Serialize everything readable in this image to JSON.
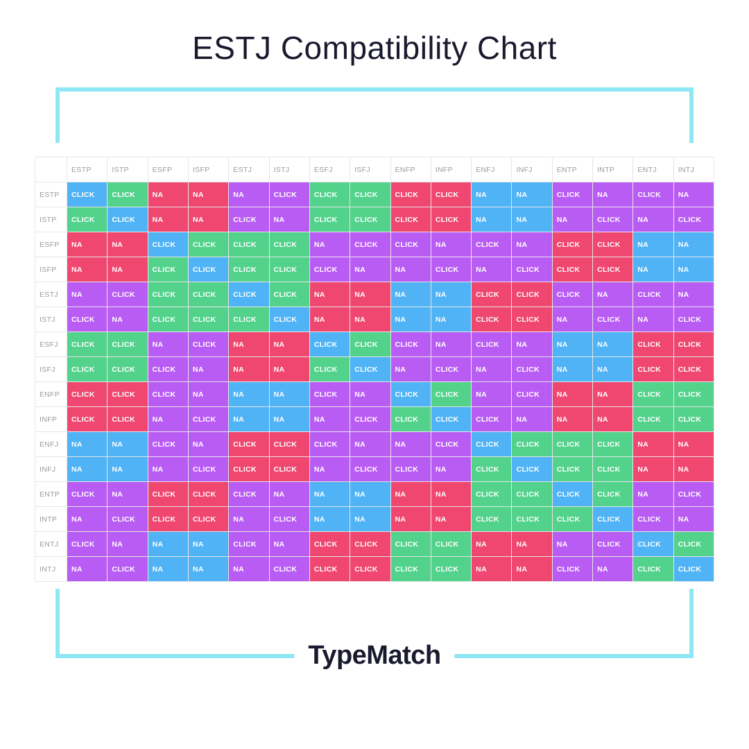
{
  "title": "ESTJ Compatibility Chart",
  "brand": "TypeMatch",
  "frame_color": "#8ee7f4",
  "colors": {
    "blue": "#4fb3f6",
    "green": "#53d28c",
    "red": "#ef476f",
    "purple": "#b95cf4"
  },
  "header_text_color": "#9a9a9a",
  "cell_text_color": "#ffffff",
  "border_color": "#e6e6e6",
  "cell_font_size": 10.5,
  "cell_font_weight": 700,
  "types": [
    "ESTP",
    "ISTP",
    "ESFP",
    "ISFP",
    "ESTJ",
    "ISTJ",
    "ESFJ",
    "ISFJ",
    "ENFP",
    "INFP",
    "ENFJ",
    "INFJ",
    "ENTP",
    "INTP",
    "ENTJ",
    "INTJ"
  ],
  "labels": {
    "click": "CLICK",
    "na": "NA"
  },
  "grid": [
    [
      [
        "CLICK",
        "blue"
      ],
      [
        "CLICK",
        "green"
      ],
      [
        "NA",
        "red"
      ],
      [
        "NA",
        "red"
      ],
      [
        "NA",
        "purple"
      ],
      [
        "CLICK",
        "purple"
      ],
      [
        "CLICK",
        "green"
      ],
      [
        "CLICK",
        "green"
      ],
      [
        "CLICK",
        "red"
      ],
      [
        "CLICK",
        "red"
      ],
      [
        "NA",
        "blue"
      ],
      [
        "NA",
        "blue"
      ],
      [
        "CLICK",
        "purple"
      ],
      [
        "NA",
        "purple"
      ],
      [
        "CLICK",
        "purple"
      ],
      [
        "NA",
        "purple"
      ]
    ],
    [
      [
        "CLICK",
        "green"
      ],
      [
        "CLICK",
        "blue"
      ],
      [
        "NA",
        "red"
      ],
      [
        "NA",
        "red"
      ],
      [
        "CLICK",
        "purple"
      ],
      [
        "NA",
        "purple"
      ],
      [
        "CLICK",
        "green"
      ],
      [
        "CLICK",
        "green"
      ],
      [
        "CLICK",
        "red"
      ],
      [
        "CLICK",
        "red"
      ],
      [
        "NA",
        "blue"
      ],
      [
        "NA",
        "blue"
      ],
      [
        "NA",
        "purple"
      ],
      [
        "CLICK",
        "purple"
      ],
      [
        "NA",
        "purple"
      ],
      [
        "CLICK",
        "purple"
      ]
    ],
    [
      [
        "NA",
        "red"
      ],
      [
        "NA",
        "red"
      ],
      [
        "CLICK",
        "blue"
      ],
      [
        "CLICK",
        "green"
      ],
      [
        "CLICK",
        "green"
      ],
      [
        "CLICK",
        "green"
      ],
      [
        "NA",
        "purple"
      ],
      [
        "CLICK",
        "purple"
      ],
      [
        "CLICK",
        "purple"
      ],
      [
        "NA",
        "purple"
      ],
      [
        "CLICK",
        "purple"
      ],
      [
        "NA",
        "purple"
      ],
      [
        "CLICK",
        "red"
      ],
      [
        "CLICK",
        "red"
      ],
      [
        "NA",
        "blue"
      ],
      [
        "NA",
        "blue"
      ]
    ],
    [
      [
        "NA",
        "red"
      ],
      [
        "NA",
        "red"
      ],
      [
        "CLICK",
        "green"
      ],
      [
        "CLICK",
        "blue"
      ],
      [
        "CLICK",
        "green"
      ],
      [
        "CLICK",
        "green"
      ],
      [
        "CLICK",
        "purple"
      ],
      [
        "NA",
        "purple"
      ],
      [
        "NA",
        "purple"
      ],
      [
        "CLICK",
        "purple"
      ],
      [
        "NA",
        "purple"
      ],
      [
        "CLICK",
        "purple"
      ],
      [
        "CLICK",
        "red"
      ],
      [
        "CLICK",
        "red"
      ],
      [
        "NA",
        "blue"
      ],
      [
        "NA",
        "blue"
      ]
    ],
    [
      [
        "NA",
        "purple"
      ],
      [
        "CLICK",
        "purple"
      ],
      [
        "CLICK",
        "green"
      ],
      [
        "CLICK",
        "green"
      ],
      [
        "CLICK",
        "blue"
      ],
      [
        "CLICK",
        "green"
      ],
      [
        "NA",
        "red"
      ],
      [
        "NA",
        "red"
      ],
      [
        "NA",
        "blue"
      ],
      [
        "NA",
        "blue"
      ],
      [
        "CLICK",
        "red"
      ],
      [
        "CLICK",
        "red"
      ],
      [
        "CLICK",
        "purple"
      ],
      [
        "NA",
        "purple"
      ],
      [
        "CLICK",
        "purple"
      ],
      [
        "NA",
        "purple"
      ]
    ],
    [
      [
        "CLICK",
        "purple"
      ],
      [
        "NA",
        "purple"
      ],
      [
        "CLICK",
        "green"
      ],
      [
        "CLICK",
        "green"
      ],
      [
        "CLICK",
        "green"
      ],
      [
        "CLICK",
        "blue"
      ],
      [
        "NA",
        "red"
      ],
      [
        "NA",
        "red"
      ],
      [
        "NA",
        "blue"
      ],
      [
        "NA",
        "blue"
      ],
      [
        "CLICK",
        "red"
      ],
      [
        "CLICK",
        "red"
      ],
      [
        "NA",
        "purple"
      ],
      [
        "CLICK",
        "purple"
      ],
      [
        "NA",
        "purple"
      ],
      [
        "CLICK",
        "purple"
      ]
    ],
    [
      [
        "CLICK",
        "green"
      ],
      [
        "CLICK",
        "green"
      ],
      [
        "NA",
        "purple"
      ],
      [
        "CLICK",
        "purple"
      ],
      [
        "NA",
        "red"
      ],
      [
        "NA",
        "red"
      ],
      [
        "CLICK",
        "blue"
      ],
      [
        "CLICK",
        "green"
      ],
      [
        "CLICK",
        "purple"
      ],
      [
        "NA",
        "purple"
      ],
      [
        "CLICK",
        "purple"
      ],
      [
        "NA",
        "purple"
      ],
      [
        "NA",
        "blue"
      ],
      [
        "NA",
        "blue"
      ],
      [
        "CLICK",
        "red"
      ],
      [
        "CLICK",
        "red"
      ]
    ],
    [
      [
        "CLICK",
        "green"
      ],
      [
        "CLICK",
        "green"
      ],
      [
        "CLICK",
        "purple"
      ],
      [
        "NA",
        "purple"
      ],
      [
        "NA",
        "red"
      ],
      [
        "NA",
        "red"
      ],
      [
        "CLICK",
        "green"
      ],
      [
        "CLICK",
        "blue"
      ],
      [
        "NA",
        "purple"
      ],
      [
        "CLICK",
        "purple"
      ],
      [
        "NA",
        "purple"
      ],
      [
        "CLICK",
        "purple"
      ],
      [
        "NA",
        "blue"
      ],
      [
        "NA",
        "blue"
      ],
      [
        "CLICK",
        "red"
      ],
      [
        "CLICK",
        "red"
      ]
    ],
    [
      [
        "CLICK",
        "red"
      ],
      [
        "CLICK",
        "red"
      ],
      [
        "CLICK",
        "purple"
      ],
      [
        "NA",
        "purple"
      ],
      [
        "NA",
        "blue"
      ],
      [
        "NA",
        "blue"
      ],
      [
        "CLICK",
        "purple"
      ],
      [
        "NA",
        "purple"
      ],
      [
        "CLICK",
        "blue"
      ],
      [
        "CLICK",
        "green"
      ],
      [
        "NA",
        "purple"
      ],
      [
        "CLICK",
        "purple"
      ],
      [
        "NA",
        "red"
      ],
      [
        "NA",
        "red"
      ],
      [
        "CLICK",
        "green"
      ],
      [
        "CLICK",
        "green"
      ]
    ],
    [
      [
        "CLICK",
        "red"
      ],
      [
        "CLICK",
        "red"
      ],
      [
        "NA",
        "purple"
      ],
      [
        "CLICK",
        "purple"
      ],
      [
        "NA",
        "blue"
      ],
      [
        "NA",
        "blue"
      ],
      [
        "NA",
        "purple"
      ],
      [
        "CLICK",
        "purple"
      ],
      [
        "CLICK",
        "green"
      ],
      [
        "CLICK",
        "blue"
      ],
      [
        "CLICK",
        "purple"
      ],
      [
        "NA",
        "purple"
      ],
      [
        "NA",
        "red"
      ],
      [
        "NA",
        "red"
      ],
      [
        "CLICK",
        "green"
      ],
      [
        "CLICK",
        "green"
      ]
    ],
    [
      [
        "NA",
        "blue"
      ],
      [
        "NA",
        "blue"
      ],
      [
        "CLICK",
        "purple"
      ],
      [
        "NA",
        "purple"
      ],
      [
        "CLICK",
        "red"
      ],
      [
        "CLICK",
        "red"
      ],
      [
        "CLICK",
        "purple"
      ],
      [
        "NA",
        "purple"
      ],
      [
        "NA",
        "purple"
      ],
      [
        "CLICK",
        "purple"
      ],
      [
        "CLICK",
        "blue"
      ],
      [
        "CLICK",
        "green"
      ],
      [
        "CLICK",
        "green"
      ],
      [
        "CLICK",
        "green"
      ],
      [
        "NA",
        "red"
      ],
      [
        "NA",
        "red"
      ]
    ],
    [
      [
        "NA",
        "blue"
      ],
      [
        "NA",
        "blue"
      ],
      [
        "NA",
        "purple"
      ],
      [
        "CLICK",
        "purple"
      ],
      [
        "CLICK",
        "red"
      ],
      [
        "CLICK",
        "red"
      ],
      [
        "NA",
        "purple"
      ],
      [
        "CLICK",
        "purple"
      ],
      [
        "CLICK",
        "purple"
      ],
      [
        "NA",
        "purple"
      ],
      [
        "CLICK",
        "green"
      ],
      [
        "CLICK",
        "blue"
      ],
      [
        "CLICK",
        "green"
      ],
      [
        "CLICK",
        "green"
      ],
      [
        "NA",
        "red"
      ],
      [
        "NA",
        "red"
      ]
    ],
    [
      [
        "CLICK",
        "purple"
      ],
      [
        "NA",
        "purple"
      ],
      [
        "CLICK",
        "red"
      ],
      [
        "CLICK",
        "red"
      ],
      [
        "CLICK",
        "purple"
      ],
      [
        "NA",
        "purple"
      ],
      [
        "NA",
        "blue"
      ],
      [
        "NA",
        "blue"
      ],
      [
        "NA",
        "red"
      ],
      [
        "NA",
        "red"
      ],
      [
        "CLICK",
        "green"
      ],
      [
        "CLICK",
        "green"
      ],
      [
        "CLICK",
        "blue"
      ],
      [
        "CLICK",
        "green"
      ],
      [
        "NA",
        "purple"
      ],
      [
        "CLICK",
        "purple"
      ]
    ],
    [
      [
        "NA",
        "purple"
      ],
      [
        "CLICK",
        "purple"
      ],
      [
        "CLICK",
        "red"
      ],
      [
        "CLICK",
        "red"
      ],
      [
        "NA",
        "purple"
      ],
      [
        "CLICK",
        "purple"
      ],
      [
        "NA",
        "blue"
      ],
      [
        "NA",
        "blue"
      ],
      [
        "NA",
        "red"
      ],
      [
        "NA",
        "red"
      ],
      [
        "CLICK",
        "green"
      ],
      [
        "CLICK",
        "green"
      ],
      [
        "CLICK",
        "green"
      ],
      [
        "CLICK",
        "blue"
      ],
      [
        "CLICK",
        "purple"
      ],
      [
        "NA",
        "purple"
      ]
    ],
    [
      [
        "CLICK",
        "purple"
      ],
      [
        "NA",
        "purple"
      ],
      [
        "NA",
        "blue"
      ],
      [
        "NA",
        "blue"
      ],
      [
        "CLICK",
        "purple"
      ],
      [
        "NA",
        "purple"
      ],
      [
        "CLICK",
        "red"
      ],
      [
        "CLICK",
        "red"
      ],
      [
        "CLICK",
        "green"
      ],
      [
        "CLICK",
        "green"
      ],
      [
        "NA",
        "red"
      ],
      [
        "NA",
        "red"
      ],
      [
        "NA",
        "purple"
      ],
      [
        "CLICK",
        "purple"
      ],
      [
        "CLICK",
        "blue"
      ],
      [
        "CLICK",
        "green"
      ]
    ],
    [
      [
        "NA",
        "purple"
      ],
      [
        "CLICK",
        "purple"
      ],
      [
        "NA",
        "blue"
      ],
      [
        "NA",
        "blue"
      ],
      [
        "NA",
        "purple"
      ],
      [
        "CLICK",
        "purple"
      ],
      [
        "CLICK",
        "red"
      ],
      [
        "CLICK",
        "red"
      ],
      [
        "CLICK",
        "green"
      ],
      [
        "CLICK",
        "green"
      ],
      [
        "NA",
        "red"
      ],
      [
        "NA",
        "red"
      ],
      [
        "CLICK",
        "purple"
      ],
      [
        "NA",
        "purple"
      ],
      [
        "CLICK",
        "green"
      ],
      [
        "CLICK",
        "blue"
      ]
    ]
  ]
}
